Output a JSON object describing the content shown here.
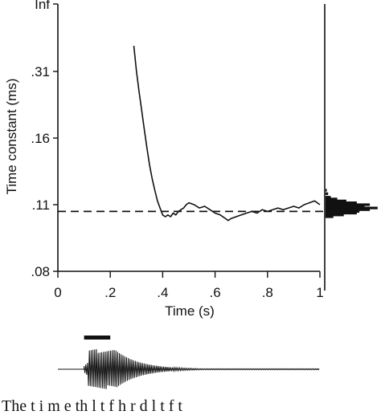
{
  "chart_data": {
    "type": "line",
    "xlabel": "Time (s)",
    "ylabel": "Time constant (ms)",
    "xlim": [
      0,
      1
    ],
    "x_ticks": [
      {
        "value": 0,
        "label": "0"
      },
      {
        "value": 0.2,
        "label": ".2"
      },
      {
        "value": 0.4,
        "label": ".4"
      },
      {
        "value": 0.6,
        "label": ".6"
      },
      {
        "value": 0.8,
        "label": ".8"
      },
      {
        "value": 1,
        "label": "1"
      }
    ],
    "y_ticks": [
      {
        "label": "Inf"
      },
      {
        "label": ".31"
      },
      {
        "label": ".16"
      },
      {
        "label": ".11"
      },
      {
        "label": ".08"
      }
    ],
    "y_scale": "reciprocal",
    "reference_line": {
      "style": "dashed",
      "value": 0.106
    },
    "series": [
      {
        "x": [
          0.29,
          0.3,
          0.31,
          0.32,
          0.33,
          0.34,
          0.35,
          0.36,
          0.37,
          0.38,
          0.39,
          0.4,
          0.41,
          0.42,
          0.43,
          0.44,
          0.45,
          0.46,
          0.47,
          0.48,
          0.49,
          0.5,
          0.52,
          0.54,
          0.56,
          0.58,
          0.6,
          0.62,
          0.64,
          0.65,
          0.66,
          0.68,
          0.7,
          0.72,
          0.74,
          0.76,
          0.78,
          0.8,
          0.82,
          0.84,
          0.86,
          0.88,
          0.9,
          0.92,
          0.94,
          0.96,
          0.98,
          0.99,
          1.0
        ],
        "y": [
          0.5,
          0.31,
          0.24,
          0.2,
          0.17,
          0.15,
          0.135,
          0.125,
          0.118,
          0.112,
          0.108,
          0.104,
          0.103,
          0.104,
          0.103,
          0.105,
          0.104,
          0.106,
          0.107,
          0.108,
          0.11,
          0.111,
          0.11,
          0.108,
          0.109,
          0.107,
          0.105,
          0.104,
          0.102,
          0.101,
          0.102,
          0.103,
          0.104,
          0.105,
          0.106,
          0.105,
          0.107,
          0.106,
          0.107,
          0.108,
          0.107,
          0.108,
          0.109,
          0.108,
          0.11,
          0.111,
          0.112,
          0.111,
          0.11
        ]
      }
    ],
    "histogram": {
      "orientation": "horizontal",
      "position": "right",
      "bins": [
        {
          "y": 0.118,
          "count": 1
        },
        {
          "y": 0.116,
          "count": 2
        },
        {
          "y": 0.114,
          "count": 4
        },
        {
          "y": 0.113,
          "count": 9
        },
        {
          "y": 0.112,
          "count": 16
        },
        {
          "y": 0.111,
          "count": 24
        },
        {
          "y": 0.11,
          "count": 34
        },
        {
          "y": 0.109,
          "count": 30
        },
        {
          "y": 0.108,
          "count": 40
        },
        {
          "y": 0.107,
          "count": 34
        },
        {
          "y": 0.106,
          "count": 26
        },
        {
          "y": 0.105,
          "count": 24
        },
        {
          "y": 0.104,
          "count": 14
        },
        {
          "y": 0.103,
          "count": 6
        }
      ]
    },
    "stimulus": {
      "bar_x": [
        0.1,
        0.2
      ],
      "burst_start": 0.1,
      "burst_peak": 0.2,
      "end": 1.0
    }
  },
  "caption": "The t i m e th  l  t  f  h  r  d  l  t  f  t  "
}
